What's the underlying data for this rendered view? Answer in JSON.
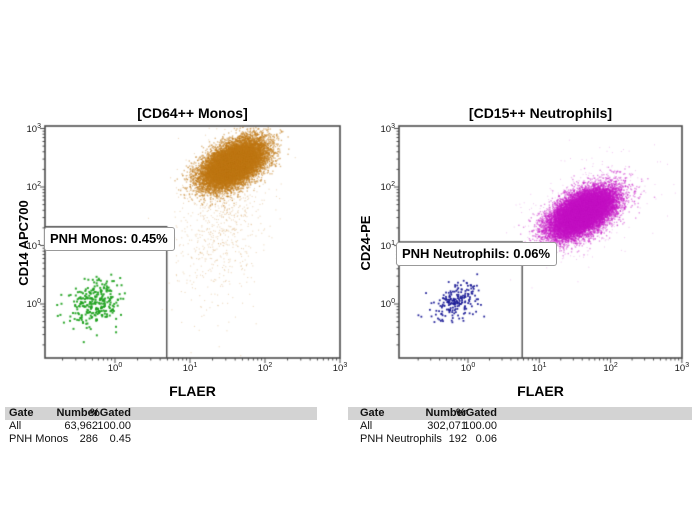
{
  "chart_data": [
    {
      "type": "scatter",
      "title": "[CD64++ Monos]",
      "xlabel": "FLAER",
      "ylabel": "CD14 APC700",
      "x_scale": "log",
      "y_scale": "log",
      "x_tick_exponents": [
        0,
        1,
        2,
        3
      ],
      "y_tick_exponents": [
        0,
        1,
        2,
        3
      ],
      "x_range_log10": [
        -0.93,
        3.0
      ],
      "y_range_log10": [
        -0.92,
        3.04
      ],
      "gate": {
        "label": "PNH Monos: 0.45%",
        "x_max_log10": 0.69,
        "y_max_log10": 1.32
      },
      "clusters": [
        {
          "name": "flaer-positive-monocytes",
          "color": "#c07714",
          "n_render": 16000,
          "center_log10": [
            1.57,
            2.4
          ],
          "sigma_log10": [
            0.21,
            0.2
          ],
          "corr": 0.5,
          "dot_size": 1.4,
          "alpha": 0.5
        },
        {
          "name": "monocyte-scatter-tail",
          "color": "#c07714",
          "n_render": 900,
          "center_log10": [
            1.42,
            1.55
          ],
          "sigma_log10": [
            0.3,
            0.78
          ],
          "corr": 0.25,
          "dot_size": 1.1,
          "alpha": 0.28
        },
        {
          "name": "pnh-monocytes",
          "color": "#1ea21e",
          "n_render": 270,
          "center_log10": [
            -0.27,
            0.03
          ],
          "sigma_log10": [
            0.17,
            0.22
          ],
          "corr": 0.25,
          "dot_size": 2,
          "alpha": 0.92
        }
      ],
      "stats_table": {
        "headers": [
          "Gate",
          "Number",
          "%Gated"
        ],
        "rows": [
          [
            "All",
            "63,962",
            "100.00"
          ],
          [
            "PNH Monos",
            "286",
            "0.45"
          ]
        ]
      }
    },
    {
      "type": "scatter",
      "title": "[CD15++ Neutrophils]",
      "xlabel": "FLAER",
      "ylabel": "CD24-PE",
      "x_scale": "log",
      "y_scale": "log",
      "x_tick_exponents": [
        0,
        1,
        2,
        3
      ],
      "y_tick_exponents": [
        0,
        1,
        2,
        3
      ],
      "x_range_log10": [
        -0.97,
        3.0
      ],
      "y_range_log10": [
        -0.92,
        3.04
      ],
      "gate": {
        "label": "PNH Neutrophils: 0.06%",
        "x_max_log10": 0.76,
        "y_max_log10": 1.06
      },
      "clusters": [
        {
          "name": "flaer-positive-neutrophils",
          "color": "#c411c4",
          "n_render": 17000,
          "center_log10": [
            1.6,
            1.57
          ],
          "sigma_log10": [
            0.23,
            0.21
          ],
          "corr": 0.55,
          "dot_size": 1.4,
          "alpha": 0.45
        },
        {
          "name": "neutrophil-halo",
          "color": "#c411c4",
          "n_render": 500,
          "center_log10": [
            1.6,
            1.58
          ],
          "sigma_log10": [
            0.42,
            0.42
          ],
          "corr": 0.4,
          "dot_size": 1,
          "alpha": 0.25
        },
        {
          "name": "pnh-neutrophils",
          "color": "#1b1b97",
          "n_render": 200,
          "center_log10": [
            -0.18,
            0.05
          ],
          "sigma_log10": [
            0.16,
            0.16
          ],
          "corr": 0.3,
          "dot_size": 1.8,
          "alpha": 0.95
        }
      ],
      "stats_table": {
        "headers": [
          "Gate",
          "Number",
          "%Gated"
        ],
        "rows": [
          [
            "All",
            "302,071",
            "100.00"
          ],
          [
            "PNH Neutrophils",
            "192",
            "0.06"
          ]
        ]
      }
    }
  ],
  "style": {
    "axis_color": "#4a4a4a",
    "gate_line_color": "#4f4f4f",
    "table_header_bg": "#d3d3d3"
  }
}
